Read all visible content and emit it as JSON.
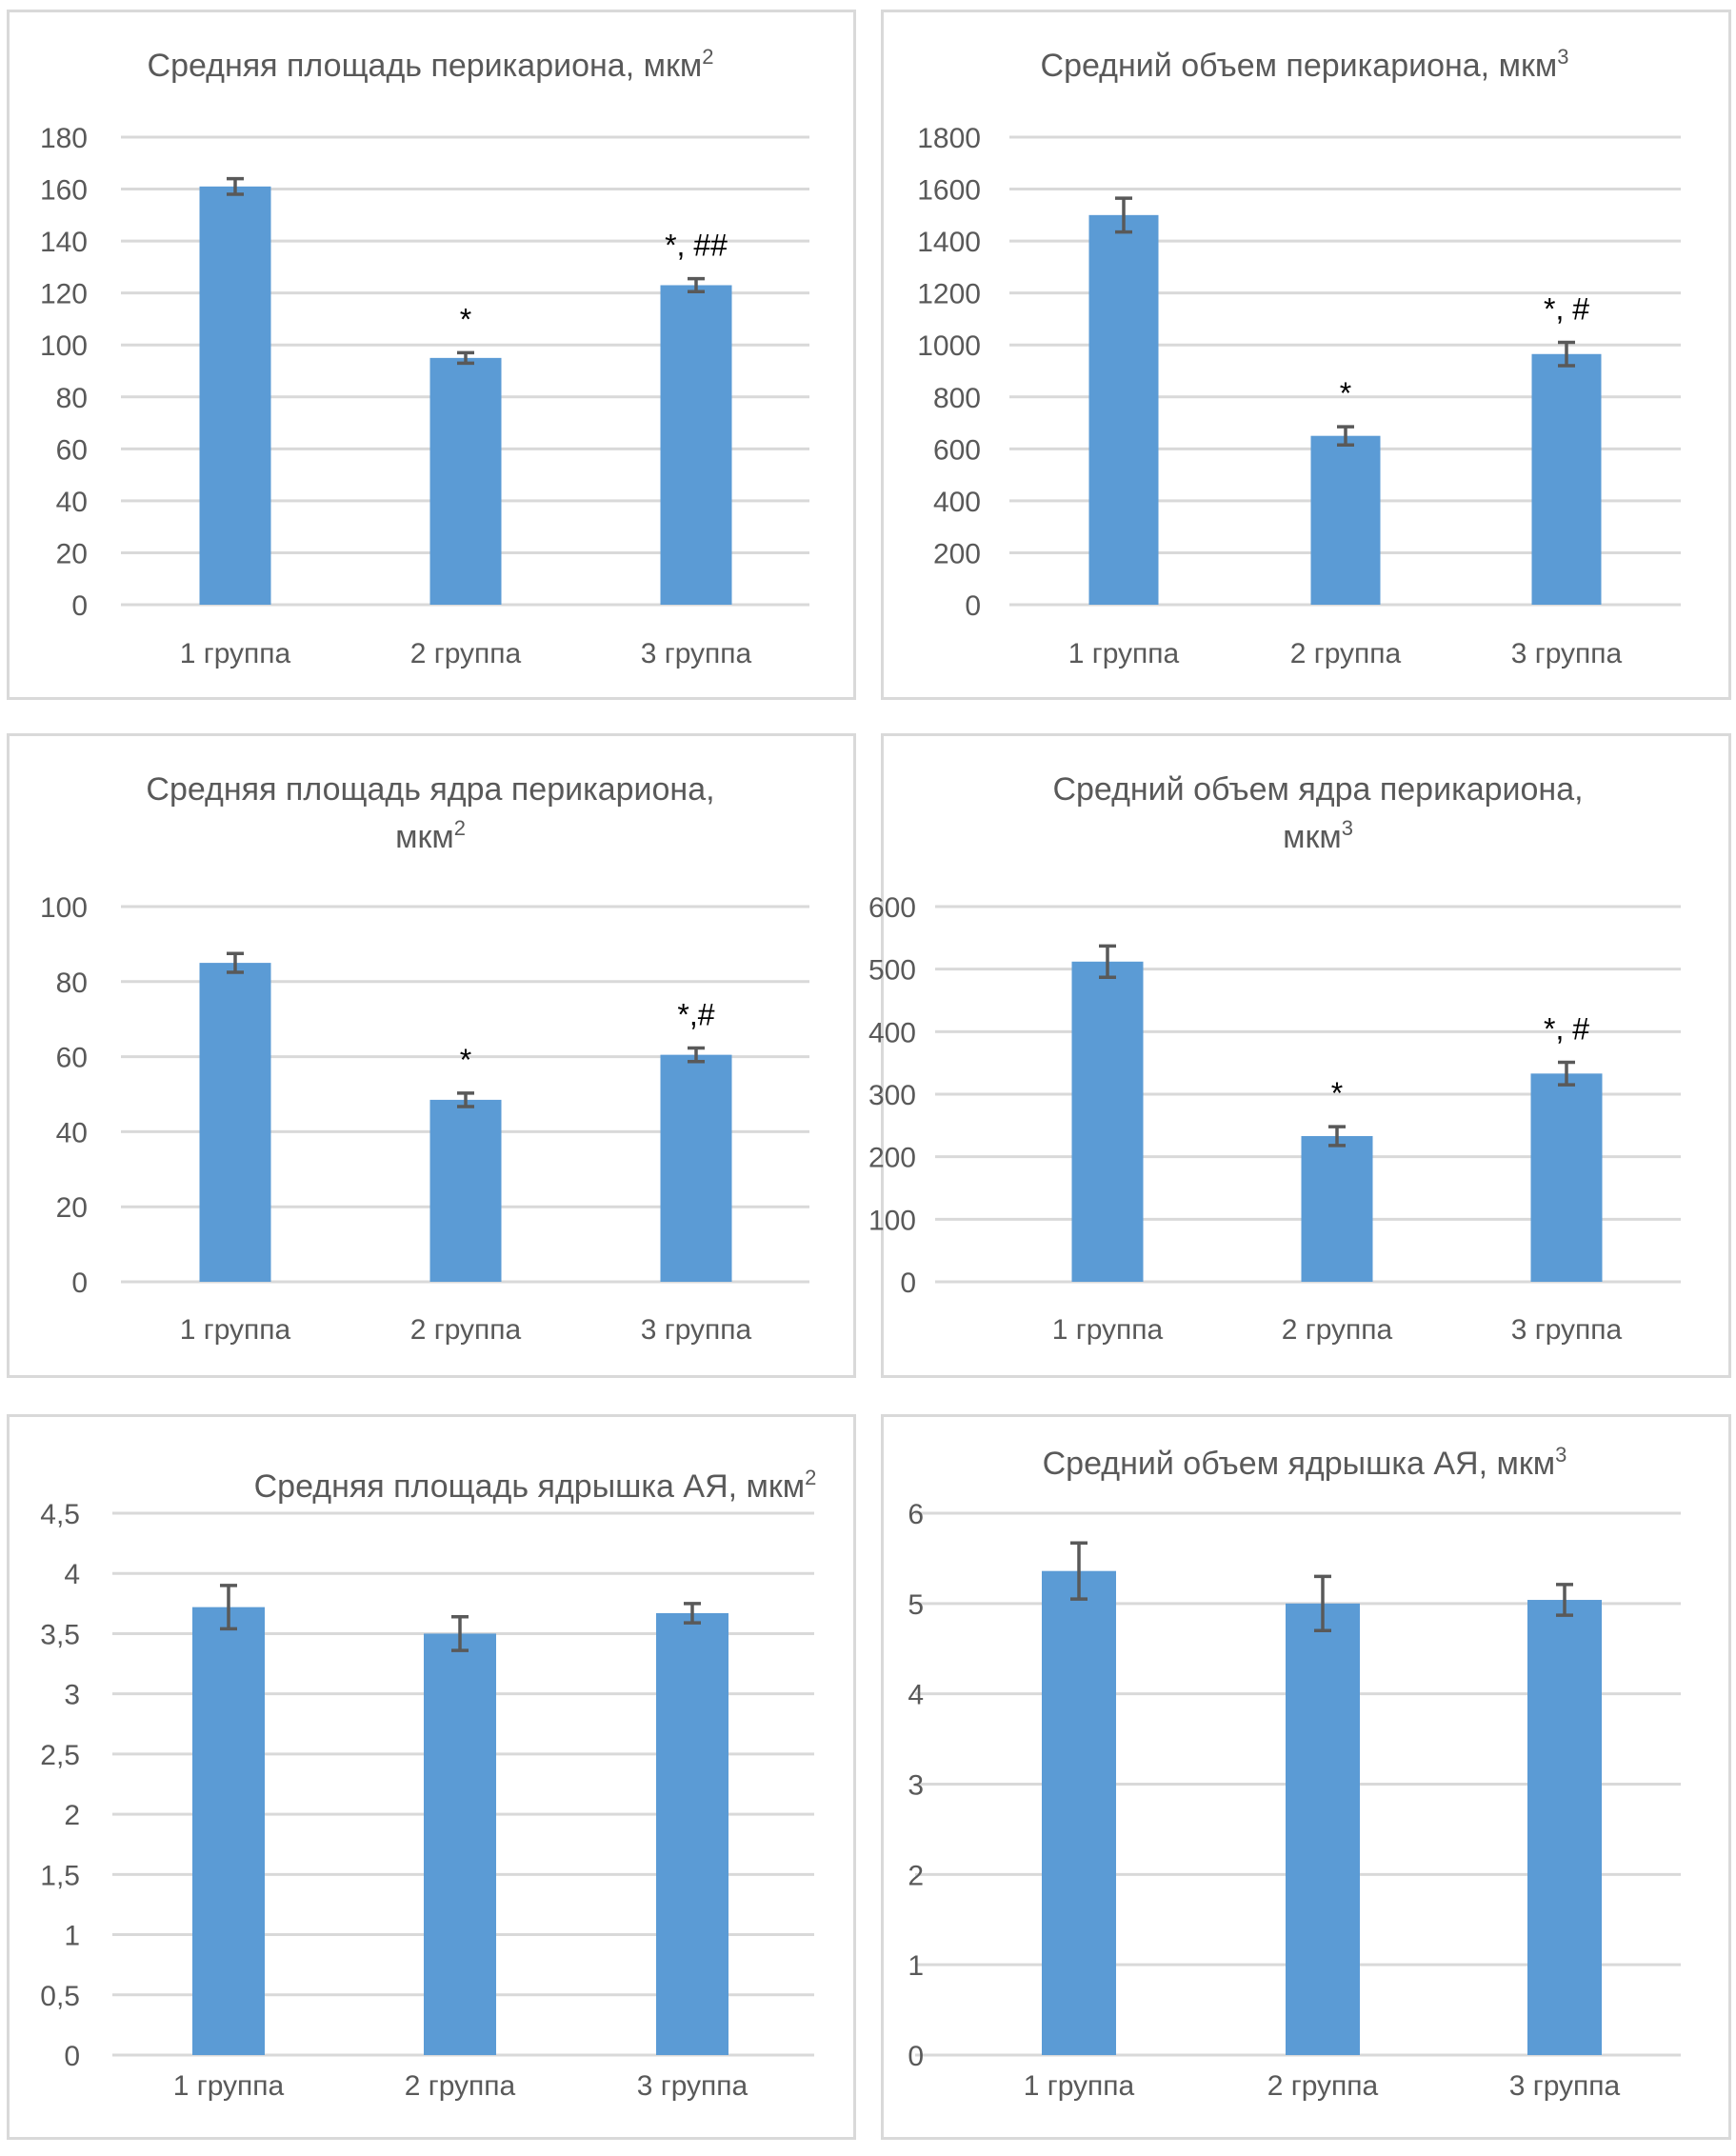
{
  "figure": {
    "panels": 6
  },
  "chart_data": [
    {
      "id": "c1",
      "type": "bar",
      "title": "Средняя площадь перикариона, мкм",
      "title_sup": "2",
      "title_lines": [
        "Средняя площадь перикариона, мкм"
      ],
      "categories": [
        "1 группа",
        "2 группа",
        "3 группа"
      ],
      "values": [
        161,
        95,
        123
      ],
      "errors": [
        3,
        2,
        2.5
      ],
      "annotations": [
        "",
        "*",
        "*, ##"
      ],
      "ylim": [
        0,
        180
      ],
      "yticks": [
        0,
        20,
        40,
        60,
        80,
        100,
        120,
        140,
        160,
        180
      ],
      "ytick_labels": [
        "0",
        "20",
        "40",
        "60",
        "80",
        "100",
        "120",
        "140",
        "160",
        "180"
      ],
      "xlabel": "",
      "ylabel": "",
      "grid": true,
      "legend": "none",
      "color": "#5b9bd5"
    },
    {
      "id": "c2",
      "type": "bar",
      "title": "Средний объем перикариона, мкм",
      "title_sup": "3",
      "title_lines": [
        "Средний объем перикариона, мкм"
      ],
      "categories": [
        "1 группа",
        "2 группа",
        "3 группа"
      ],
      "values": [
        1500,
        650,
        965
      ],
      "errors": [
        65,
        35,
        45
      ],
      "annotations": [
        "",
        "*",
        "*, #"
      ],
      "ylim": [
        0,
        1800
      ],
      "yticks": [
        0,
        200,
        400,
        600,
        800,
        1000,
        1200,
        1400,
        1600,
        1800
      ],
      "ytick_labels": [
        "0",
        "200",
        "400",
        "600",
        "800",
        "1000",
        "1200",
        "1400",
        "1600",
        "1800"
      ],
      "xlabel": "",
      "ylabel": "",
      "grid": true,
      "legend": "none",
      "color": "#5b9bd5"
    },
    {
      "id": "c3",
      "type": "bar",
      "title": "Средняя площадь ядра перикариона, мкм",
      "title_sup": "2",
      "title_lines": [
        "Средняя площадь ядра перикариона,",
        "мкм"
      ],
      "categories": [
        "1 группа",
        "2 группа",
        "3 группа"
      ],
      "values": [
        85,
        48.5,
        60.5
      ],
      "errors": [
        2.5,
        1.8,
        1.8
      ],
      "annotations": [
        "",
        "*",
        "*,#"
      ],
      "ylim": [
        0,
        100
      ],
      "yticks": [
        0,
        20,
        40,
        60,
        80,
        100
      ],
      "ytick_labels": [
        "0",
        "20",
        "40",
        "60",
        "80",
        "100"
      ],
      "xlabel": "",
      "ylabel": "",
      "grid": true,
      "legend": "none",
      "color": "#5b9bd5"
    },
    {
      "id": "c4",
      "type": "bar",
      "title": "Средний объем ядра перикариона, мкм",
      "title_sup": "3",
      "title_lines": [
        "Средний объем ядра перикариона,",
        "мкм"
      ],
      "categories": [
        "1 группа",
        "2 группа",
        "3 группа"
      ],
      "values": [
        512,
        233,
        333
      ],
      "errors": [
        25,
        15,
        18
      ],
      "annotations": [
        "",
        "*",
        "*, #"
      ],
      "ylim": [
        0,
        600
      ],
      "yticks": [
        0,
        100,
        200,
        300,
        400,
        500,
        600
      ],
      "ytick_labels": [
        "0",
        "100",
        "200",
        "300",
        "400",
        "500",
        "600"
      ],
      "xlabel": "",
      "ylabel": "",
      "grid": true,
      "legend": "none",
      "color": "#5b9bd5"
    },
    {
      "id": "c5",
      "type": "bar",
      "title": "Средняя площадь ядрышка АЯ, мкм",
      "title_sup": "2",
      "title_lines": [
        "Средняя площадь ядрышка АЯ, мкм"
      ],
      "categories": [
        "1 группа",
        "2 группа",
        "3 группа"
      ],
      "values": [
        3.72,
        3.5,
        3.67
      ],
      "errors": [
        0.18,
        0.14,
        0.08
      ],
      "annotations": [
        "",
        "",
        ""
      ],
      "ylim": [
        0,
        4.5
      ],
      "yticks": [
        0,
        0.5,
        1,
        1.5,
        2,
        2.5,
        3,
        3.5,
        4,
        4.5
      ],
      "ytick_labels": [
        "0",
        "0,5",
        "1",
        "1,5",
        "2",
        "2,5",
        "3",
        "3,5",
        "4",
        "4,5"
      ],
      "xlabel": "",
      "ylabel": "",
      "grid": true,
      "legend": "none",
      "color": "#5b9bd5"
    },
    {
      "id": "c6",
      "type": "bar",
      "title": "Средний объем ядрышка АЯ, мкм",
      "title_sup": "3",
      "title_lines": [
        "Средний объем ядрышка АЯ, мкм"
      ],
      "categories": [
        "1 группа",
        "2 группа",
        "3 группа"
      ],
      "values": [
        5.36,
        5.0,
        5.04
      ],
      "errors": [
        0.31,
        0.3,
        0.17
      ],
      "annotations": [
        "",
        "",
        ""
      ],
      "ylim": [
        0,
        6
      ],
      "yticks": [
        0,
        1,
        2,
        3,
        4,
        5,
        6
      ],
      "ytick_labels": [
        "0",
        "1",
        "2",
        "3",
        "4",
        "5",
        "6"
      ],
      "xlabel": "",
      "ylabel": "",
      "grid": true,
      "legend": "none",
      "color": "#5b9bd5"
    }
  ]
}
